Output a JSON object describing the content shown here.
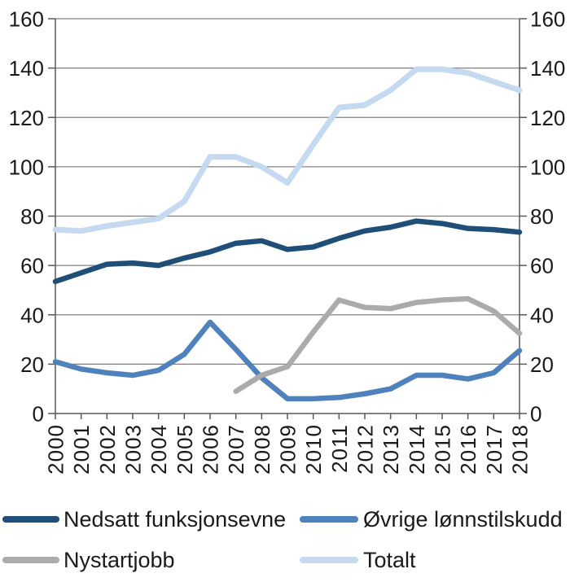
{
  "chart_data": {
    "type": "line",
    "title": "",
    "xlabel": "",
    "ylabel": "",
    "x": [
      "2000",
      "2001",
      "2002",
      "2003",
      "2004",
      "2005",
      "2006",
      "2007",
      "2008",
      "2009",
      "2010",
      "2011",
      "2012",
      "2013",
      "2014",
      "2015",
      "2016",
      "2017",
      "2018"
    ],
    "ylim": [
      0,
      160
    ],
    "ytick_step": 20,
    "yticks": [
      0,
      20,
      40,
      60,
      80,
      100,
      120,
      140,
      160
    ],
    "grid": true,
    "y_axis_on_both_sides": true,
    "x_labels_rotated_degrees": 90,
    "legend_position": "bottom",
    "series": [
      {
        "name": "Nedsatt funksjonsevne",
        "color": "#1f4e79",
        "stroke_width": 6.5,
        "values": [
          53.5,
          57,
          60.5,
          61,
          60,
          63,
          65.5,
          69,
          70,
          66.5,
          67.5,
          71,
          74,
          75.5,
          78,
          77,
          75,
          74.5,
          73.5
        ]
      },
      {
        "name": "Øvrige lønnstilskudd",
        "color": "#4f81bd",
        "stroke_width": 6.5,
        "values": [
          21,
          18,
          16.5,
          15.5,
          17.5,
          24,
          37,
          26,
          14.5,
          6,
          6,
          6.5,
          8,
          10,
          15.5,
          15.5,
          14,
          16.5,
          25.5
        ]
      },
      {
        "name": "Nystartjobb",
        "color": "#ababab",
        "stroke_width": 6.5,
        "values": [
          null,
          null,
          null,
          null,
          null,
          null,
          null,
          9,
          15.5,
          19,
          33,
          46,
          43,
          42.5,
          45,
          46,
          46.5,
          41.5,
          32.5
        ]
      },
      {
        "name": "Totalt",
        "color": "#c5d9f1",
        "stroke_width": 7,
        "values": [
          74.5,
          74,
          76,
          77.5,
          79,
          86,
          104,
          104,
          100,
          93.5,
          109,
          124,
          125,
          131,
          139.5,
          139.5,
          138,
          134.5,
          131
        ]
      }
    ],
    "colors": {
      "gridline": "#808080",
      "axis": "#595959",
      "tick_text": "#1a1a1a",
      "background": "#ffffff"
    }
  },
  "legend": {
    "items": [
      "Nedsatt funksjonsevne",
      "Øvrige lønnstilskudd",
      "Nystartjobb",
      "Totalt"
    ]
  }
}
